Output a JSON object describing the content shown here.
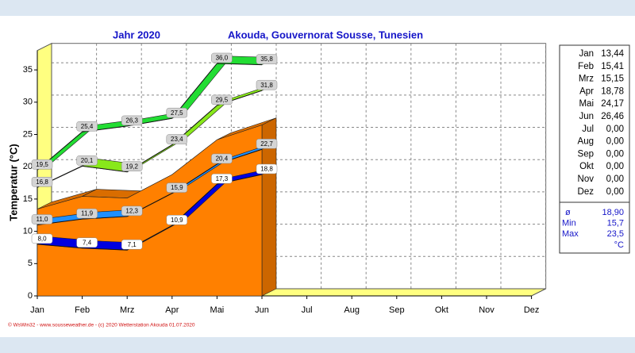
{
  "chart_data": {
    "type": "line3d",
    "title": "Jahr  2020",
    "subtitle": "Akouda, Gouvernorat Sousse, Tunesien",
    "y_label": "Temperatur  (°C)",
    "footer": "© WsWin32 - www.sousseweather.de - (c) 2020 Wetterstation Akouda  01.07.2020",
    "categories": [
      "Jan",
      "Feb",
      "Mrz",
      "Apr",
      "Mai",
      "Jun",
      "Jul",
      "Aug",
      "Sep",
      "Okt",
      "Nov",
      "Dez"
    ],
    "ylim": [
      0,
      38
    ],
    "yticks": [
      0,
      5,
      10,
      15,
      20,
      25,
      30,
      35
    ],
    "grid": true,
    "series": [
      {
        "kind": "area",
        "color": "#ff8000",
        "values": [
          13.44,
          15.41,
          15.15,
          18.78,
          24.17,
          26.46,
          null,
          null,
          null,
          null,
          null,
          null
        ]
      },
      {
        "kind": "line",
        "color": "#0000e0",
        "values": [
          8.0,
          7.4,
          7.1,
          10.9,
          17.3,
          18.8,
          null,
          null,
          null,
          null,
          null,
          null
        ],
        "value_labels": [
          "8,0",
          "7,4",
          "7,1",
          "10,9",
          "17,3",
          "18,8",
          null,
          null,
          null,
          null,
          null,
          null
        ]
      },
      {
        "kind": "line",
        "color": "#1e8fff",
        "values": [
          11.0,
          11.9,
          12.3,
          15.9,
          20.4,
          22.7,
          null,
          null,
          null,
          null,
          null,
          null
        ],
        "value_labels": [
          "11,0",
          "11,9",
          "12,3",
          "15,9",
          "20,4",
          "22,7",
          null,
          null,
          null,
          null,
          null,
          null
        ]
      },
      {
        "kind": "line",
        "color": "#88e81a",
        "values": [
          16.8,
          20.1,
          19.2,
          23.4,
          29.5,
          31.8,
          null,
          null,
          null,
          null,
          null,
          null
        ],
        "value_labels": [
          "16,8",
          "20,1",
          "19,2",
          "23,4",
          "29,5",
          "31,8",
          null,
          null,
          null,
          null,
          null,
          null
        ]
      },
      {
        "kind": "line",
        "color": "#22dd33",
        "values": [
          19.5,
          25.4,
          26.3,
          27.5,
          36.0,
          35.8,
          null,
          null,
          null,
          null,
          null,
          null
        ],
        "value_labels": [
          "19,5",
          "25,4",
          "26,3",
          "27,5",
          "36,0",
          "35,8",
          null,
          null,
          null,
          null,
          null,
          null
        ]
      }
    ]
  },
  "side_table": {
    "rows": [
      [
        "Jan",
        "13,44"
      ],
      [
        "Feb",
        "15,41"
      ],
      [
        "Mrz",
        "15,15"
      ],
      [
        "Apr",
        "18,78"
      ],
      [
        "Mai",
        "24,17"
      ],
      [
        "Jun",
        "26,46"
      ],
      [
        "Jul",
        "0,00"
      ],
      [
        "Aug",
        "0,00"
      ],
      [
        "Sep",
        "0,00"
      ],
      [
        "Okt",
        "0,00"
      ],
      [
        "Nov",
        "0,00"
      ],
      [
        "Dez",
        "0,00"
      ]
    ],
    "summary": [
      [
        "ø",
        "18,90"
      ],
      [
        "Min",
        "15,7"
      ],
      [
        "Max",
        "23,5"
      ]
    ],
    "unit": "°C"
  }
}
